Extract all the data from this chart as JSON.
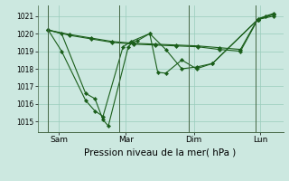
{
  "title": "",
  "xlabel": "Pression niveau de la mer( hPa )",
  "xlabel_fontsize": 7.5,
  "bg_color": "#cce8e0",
  "grid_color": "#99ccbb",
  "line_color": "#1a5e1a",
  "marker": "D",
  "marker_size": 2.2,
  "ylim": [
    1014.4,
    1021.6
  ],
  "yticks": [
    1015,
    1016,
    1017,
    1018,
    1019,
    1020,
    1021
  ],
  "x_ticks_labels": [
    "Sam",
    "Mar",
    "Dim",
    "Lun"
  ],
  "x_ticks_pos": [
    0.12,
    0.37,
    0.625,
    0.875
  ],
  "vline_x": [
    0.08,
    0.345,
    0.605,
    0.855
  ],
  "series": [
    {
      "x": [
        0.08,
        0.13,
        0.22,
        0.255,
        0.285,
        0.305,
        0.38,
        0.395,
        0.415,
        0.46,
        0.52,
        0.58,
        0.635,
        0.695,
        0.865,
        0.895,
        0.925
      ],
      "y": [
        1020.2,
        1020.0,
        1016.6,
        1016.3,
        1015.1,
        1014.75,
        1019.25,
        1019.5,
        1019.6,
        1020.0,
        1019.1,
        1018.0,
        1018.1,
        1018.3,
        1020.8,
        1021.0,
        1021.15
      ]
    },
    {
      "x": [
        0.08,
        0.13,
        0.22,
        0.255,
        0.285,
        0.36,
        0.39,
        0.46,
        0.49,
        0.52,
        0.58,
        0.635,
        0.695,
        0.865,
        0.925
      ],
      "y": [
        1020.2,
        1019.0,
        1016.2,
        1015.6,
        1015.3,
        1019.25,
        1019.55,
        1020.0,
        1017.8,
        1017.75,
        1018.5,
        1018.0,
        1018.3,
        1020.8,
        1021.1
      ]
    },
    {
      "x": [
        0.08,
        0.16,
        0.24,
        0.32,
        0.4,
        0.48,
        0.56,
        0.64,
        0.72,
        0.8,
        0.865,
        0.925
      ],
      "y": [
        1020.2,
        1019.95,
        1019.75,
        1019.55,
        1019.45,
        1019.4,
        1019.35,
        1019.3,
        1019.2,
        1019.1,
        1020.85,
        1021.1
      ]
    },
    {
      "x": [
        0.08,
        0.16,
        0.24,
        0.32,
        0.4,
        0.48,
        0.56,
        0.64,
        0.72,
        0.8,
        0.865,
        0.925
      ],
      "y": [
        1020.2,
        1019.9,
        1019.7,
        1019.5,
        1019.4,
        1019.35,
        1019.3,
        1019.25,
        1019.1,
        1019.0,
        1020.8,
        1021.0
      ]
    }
  ]
}
